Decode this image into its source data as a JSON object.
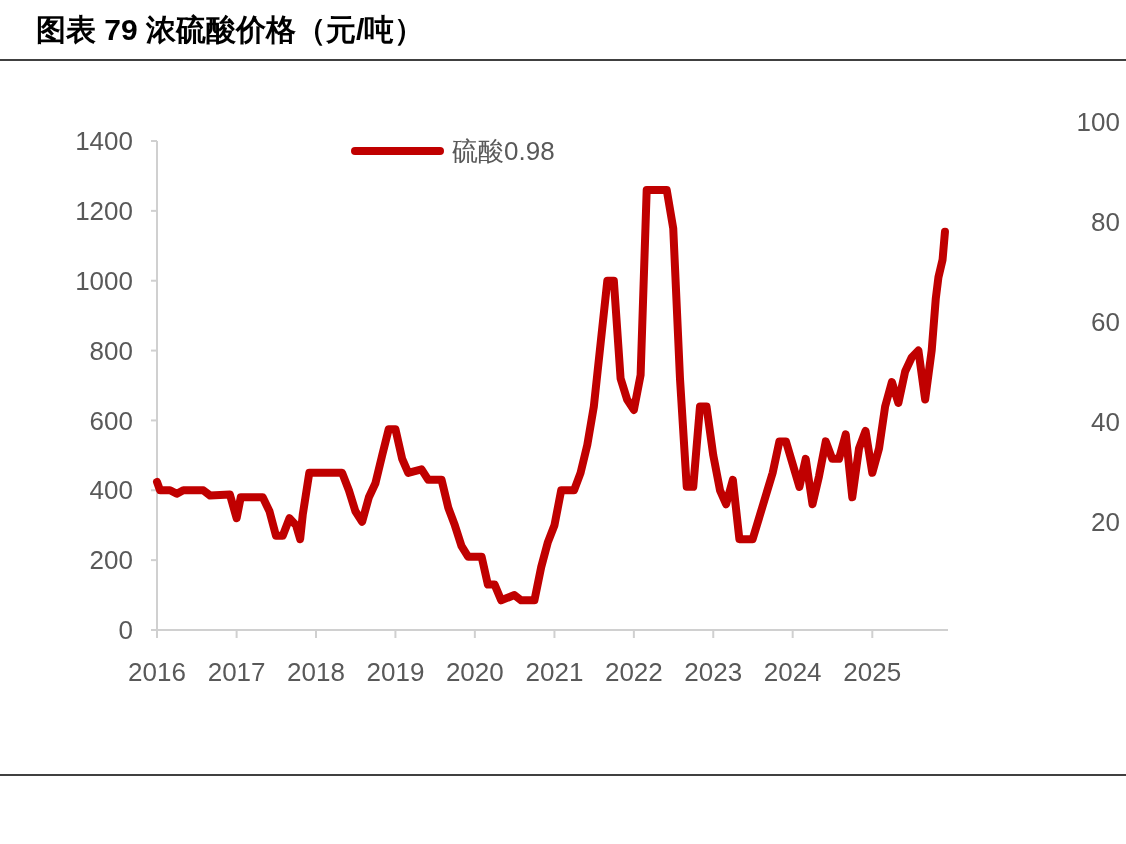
{
  "chart_data": {
    "type": "line",
    "title": "图表 79 浓硫酸价格（元/吨）",
    "legend": "top",
    "x": [
      "2016-01",
      "2016-01-15",
      "2016-03",
      "2016-04",
      "2016-05",
      "2016-08",
      "2016-09",
      "2016-12",
      "2017-01",
      "2017-01-20",
      "2017-02",
      "2017-05",
      "2017-06",
      "2017-07",
      "2017-08",
      "2017-09",
      "2017-10",
      "2017-10-20",
      "2017-11",
      "2017-12",
      "2018-05",
      "2018-06",
      "2018-07",
      "2018-08",
      "2018-09",
      "2018-10",
      "2018-11",
      "2018-12",
      "2019-01",
      "2019-02",
      "2019-03",
      "2019-05",
      "2019-06",
      "2019-08",
      "2019-09",
      "2019-10",
      "2019-11",
      "2019-12",
      "2020-02",
      "2020-03",
      "2020-04",
      "2020-05",
      "2020-07",
      "2020-08",
      "2020-10",
      "2020-11",
      "2020-12",
      "2021-01",
      "2021-02",
      "2021-04",
      "2021-05",
      "2021-06",
      "2021-07",
      "2021-08",
      "2021-09",
      "2021-10",
      "2021-11",
      "2021-12",
      "2022-01",
      "2022-02",
      "2022-03",
      "2022-04",
      "2022-06",
      "2022-07",
      "2022-08",
      "2022-09",
      "2022-10",
      "2022-11",
      "2022-12",
      "2023-01",
      "2023-02",
      "2023-03",
      "2023-04",
      "2023-05",
      "2023-06",
      "2023-07",
      "2023-10",
      "2023-11",
      "2023-12",
      "2024-02",
      "2024-03",
      "2024-04",
      "2024-05",
      "2024-06",
      "2024-07",
      "2024-08",
      "2024-09",
      "2024-10",
      "2024-11",
      "2024-12",
      "2025-01",
      "2025-02",
      "2025-03",
      "2025-04",
      "2025-05",
      "2025-06",
      "2025-07",
      "2025-08",
      "2025-09",
      "2025-10",
      "2025-10-20",
      "2025-11",
      "2025-11-20",
      "2025-12"
    ],
    "series": [
      {
        "name": "硫酸0.98",
        "color": "#c00000",
        "values": [
          424,
          400,
          400,
          390,
          400,
          400,
          385,
          388,
          320,
          380,
          380,
          380,
          340,
          270,
          270,
          320,
          300,
          260,
          330,
          450,
          450,
          400,
          340,
          310,
          380,
          420,
          500,
          575,
          575,
          490,
          450,
          460,
          430,
          430,
          350,
          300,
          240,
          210,
          210,
          130,
          130,
          85,
          100,
          85,
          85,
          180,
          250,
          300,
          400,
          400,
          450,
          530,
          640,
          820,
          1000,
          1000,
          720,
          660,
          630,
          730,
          1260,
          1260,
          1260,
          1150,
          720,
          410,
          410,
          640,
          640,
          500,
          400,
          360,
          430,
          260,
          260,
          260,
          450,
          540,
          540,
          410,
          490,
          360,
          440,
          540,
          490,
          490,
          560,
          380,
          520,
          570,
          450,
          520,
          640,
          710,
          650,
          740,
          780,
          800,
          660,
          800,
          950,
          1010,
          1060,
          1140
        ]
      }
    ],
    "xlim": [
      "2016-01",
      "2025-12-15"
    ],
    "xticks": [
      {
        "value": "2016",
        "label": "2016"
      },
      {
        "value": "2017",
        "label": "2017"
      },
      {
        "value": "2018",
        "label": "2018"
      },
      {
        "value": "2019",
        "label": "2019"
      },
      {
        "value": "2020",
        "label": "2020"
      },
      {
        "value": "2021",
        "label": "2021"
      },
      {
        "value": "2022",
        "label": "2022"
      },
      {
        "value": "2023",
        "label": "2023"
      },
      {
        "value": "2024",
        "label": "2024"
      },
      {
        "value": "2025",
        "label": "2025"
      }
    ],
    "ylim": [
      0,
      1400
    ],
    "yticks": [
      0,
      200,
      400,
      600,
      800,
      1000,
      1200,
      1400
    ],
    "y2lim": [
      -1.6,
      100
    ],
    "y2ticks": [
      20,
      40,
      60,
      80,
      100
    ],
    "grid": false,
    "line_style": "solid",
    "marker": "none"
  }
}
